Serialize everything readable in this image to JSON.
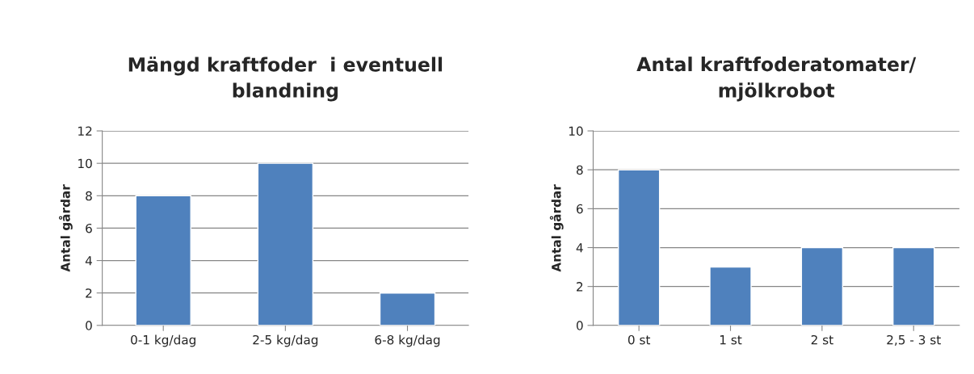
{
  "chart_data": [
    {
      "type": "bar",
      "title": "Mängd kraftfoder  i eventuell\nblandning",
      "ylabel": "Antal gårdar",
      "categories": [
        "0-1 kg/dag",
        "2-5 kg/dag",
        "6-8 kg/dag"
      ],
      "values": [
        8,
        10,
        2
      ],
      "color": "#4f81bd",
      "ylim": [
        0,
        12
      ],
      "yticks": [
        0,
        2,
        4,
        6,
        8,
        10,
        12
      ],
      "grid": "y"
    },
    {
      "type": "bar",
      "title": "Antal kraftfoderatomater/\nmjölkrobot",
      "ylabel": "Antal gårdar",
      "categories": [
        "0 st",
        "1 st",
        "2 st",
        "2,5 - 3 st"
      ],
      "values": [
        8,
        3,
        4,
        4
      ],
      "color": "#4f81bd",
      "ylim": [
        0,
        10
      ],
      "yticks": [
        0,
        2,
        4,
        6,
        8,
        10
      ],
      "grid": "y"
    }
  ]
}
